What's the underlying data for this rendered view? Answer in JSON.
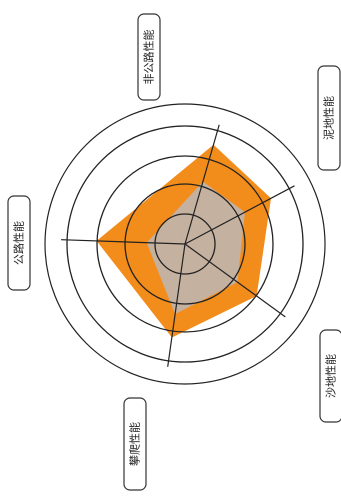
{
  "chart_data": {
    "type": "radar",
    "axes": [
      "非公路性能",
      "泥地性能",
      "沙地性能",
      "攀爬性能",
      "公路性能"
    ],
    "rings": 4,
    "max": 4,
    "series": [
      {
        "values": [
          3.5,
          3.3,
          3.0,
          3.2,
          3.0
        ]
      },
      {
        "values": [
          2.2,
          2.3,
          2.2,
          2.4,
          1.3
        ]
      }
    ],
    "colors": {
      "outer_series": "#F28C1A",
      "inner_series": "#C5B1A0",
      "rings": "#222222",
      "spokes": "#222222"
    },
    "grid": true
  }
}
